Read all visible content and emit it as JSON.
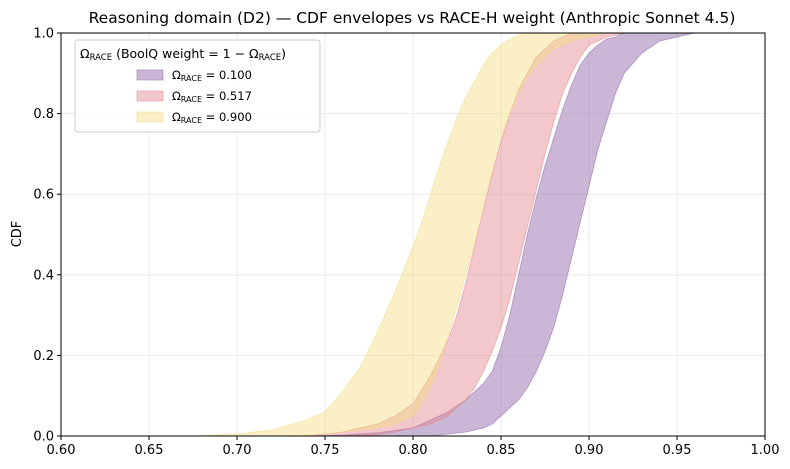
{
  "chart_data": {
    "type": "area",
    "title": "Reasoning domain (D2) — CDF envelopes vs RACE-H weight (Anthropic Sonnet 4.5)",
    "xlabel": "",
    "ylabel": "CDF",
    "xlim": [
      0.6,
      1.0
    ],
    "ylim": [
      0.0,
      1.0
    ],
    "x_ticks": [
      "0.60",
      "0.65",
      "0.70",
      "0.75",
      "0.80",
      "0.85",
      "0.90",
      "0.95",
      "1.00"
    ],
    "y_ticks": [
      "0.0",
      "0.2",
      "0.4",
      "0.6",
      "0.8",
      "1.0"
    ],
    "grid": true,
    "legend": {
      "placement": "top-left",
      "title_main": "Ω",
      "title_sub": "RACE",
      "title_rest": "  (BoolQ weight  = 1 − Ω",
      "title_sub2": "RACE",
      "title_close": ")",
      "entries": [
        {
          "symbol": "Ω",
          "sub": "RACE",
          "text": " = 0.100"
        },
        {
          "symbol": "Ω",
          "sub": "RACE",
          "text": " = 0.517"
        },
        {
          "symbol": "Ω",
          "sub": "RACE",
          "text": " = 0.900"
        }
      ]
    },
    "series": [
      {
        "name": "Ω_RACE = 0.100",
        "color": "#9e7bb5",
        "alpha": 0.55,
        "x": [
          0.6,
          0.74,
          0.76,
          0.78,
          0.8,
          0.81,
          0.82,
          0.83,
          0.84,
          0.845,
          0.85,
          0.855,
          0.86,
          0.865,
          0.87,
          0.875,
          0.88,
          0.885,
          0.89,
          0.895,
          0.9,
          0.905,
          0.91,
          0.915,
          0.92,
          0.93,
          0.94,
          0.95,
          0.96,
          0.97,
          1.0
        ],
        "lower": [
          0.0,
          0.0,
          0.0,
          0.0,
          0.0,
          0.0,
          0.005,
          0.01,
          0.02,
          0.03,
          0.05,
          0.07,
          0.09,
          0.12,
          0.16,
          0.21,
          0.27,
          0.35,
          0.44,
          0.53,
          0.62,
          0.71,
          0.78,
          0.85,
          0.9,
          0.95,
          0.98,
          0.99,
          1.0,
          1.0,
          1.0
        ],
        "upper": [
          0.0,
          0.0,
          0.002,
          0.008,
          0.02,
          0.04,
          0.06,
          0.09,
          0.13,
          0.16,
          0.22,
          0.3,
          0.4,
          0.5,
          0.59,
          0.67,
          0.74,
          0.81,
          0.87,
          0.92,
          0.95,
          0.97,
          0.985,
          0.99,
          1.0,
          1.0,
          1.0,
          1.0,
          1.0,
          1.0,
          1.0
        ]
      },
      {
        "name": "Ω_RACE = 0.517",
        "color": "#e3868e",
        "alpha": 0.45,
        "x": [
          0.6,
          0.74,
          0.76,
          0.78,
          0.79,
          0.8,
          0.81,
          0.82,
          0.825,
          0.83,
          0.835,
          0.84,
          0.845,
          0.85,
          0.855,
          0.86,
          0.865,
          0.87,
          0.875,
          0.88,
          0.885,
          0.89,
          0.895,
          0.9,
          0.91,
          0.92,
          0.93,
          0.94,
          0.95,
          1.0
        ],
        "lower": [
          0.0,
          0.0,
          0.0,
          0.003,
          0.01,
          0.02,
          0.03,
          0.05,
          0.07,
          0.09,
          0.12,
          0.16,
          0.21,
          0.27,
          0.34,
          0.43,
          0.52,
          0.61,
          0.7,
          0.78,
          0.85,
          0.9,
          0.94,
          0.97,
          0.99,
          1.0,
          1.0,
          1.0,
          1.0,
          1.0
        ],
        "upper": [
          0.0,
          0.0,
          0.01,
          0.03,
          0.05,
          0.08,
          0.15,
          0.24,
          0.3,
          0.38,
          0.47,
          0.56,
          0.65,
          0.73,
          0.8,
          0.86,
          0.9,
          0.94,
          0.96,
          0.98,
          0.99,
          1.0,
          1.0,
          1.0,
          1.0,
          1.0,
          1.0,
          1.0,
          1.0,
          1.0
        ]
      },
      {
        "name": "Ω_RACE = 0.900",
        "color": "#f5dc82",
        "alpha": 0.45,
        "x": [
          0.6,
          0.68,
          0.7,
          0.72,
          0.74,
          0.75,
          0.76,
          0.77,
          0.78,
          0.79,
          0.8,
          0.805,
          0.81,
          0.815,
          0.82,
          0.825,
          0.83,
          0.835,
          0.84,
          0.845,
          0.85,
          0.855,
          0.86,
          0.865,
          0.87,
          0.88,
          0.89,
          0.9,
          0.91,
          0.92,
          0.93,
          1.0
        ],
        "lower": [
          0.0,
          0.0,
          0.0,
          0.0,
          0.002,
          0.005,
          0.01,
          0.015,
          0.02,
          0.03,
          0.05,
          0.08,
          0.12,
          0.18,
          0.25,
          0.32,
          0.4,
          0.48,
          0.57,
          0.66,
          0.74,
          0.8,
          0.85,
          0.89,
          0.92,
          0.96,
          0.98,
          0.99,
          1.0,
          1.0,
          1.0,
          1.0
        ],
        "upper": [
          0.0,
          0.001,
          0.005,
          0.015,
          0.04,
          0.06,
          0.11,
          0.17,
          0.26,
          0.36,
          0.47,
          0.53,
          0.6,
          0.67,
          0.73,
          0.79,
          0.84,
          0.88,
          0.92,
          0.95,
          0.97,
          0.985,
          0.995,
          1.0,
          1.0,
          1.0,
          1.0,
          1.0,
          1.0,
          1.0,
          1.0,
          1.0
        ]
      }
    ]
  }
}
